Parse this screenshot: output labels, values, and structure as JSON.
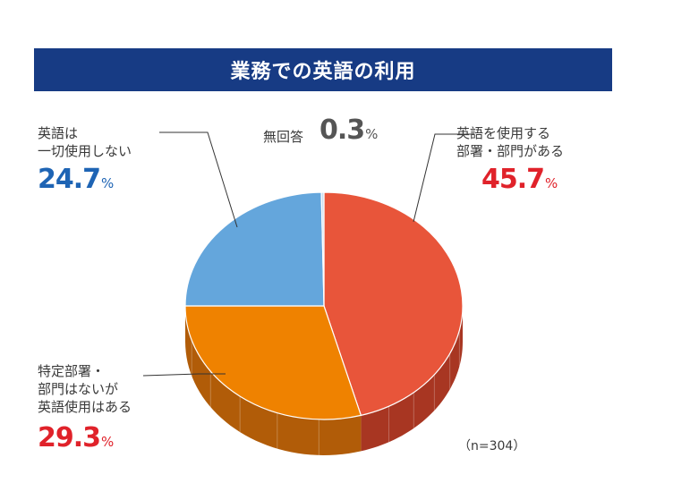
{
  "chart_data": {
    "type": "pie",
    "title": "業務での英語の利用",
    "note": "（n=304）",
    "unit": "%",
    "slices": [
      {
        "label_lines": [
          "英語を使用する",
          "部署・部門がある"
        ],
        "value": 45.7,
        "value_text": "45.7",
        "color": "#e8553a",
        "side_color": "#a83622",
        "value_color": "#e0222a"
      },
      {
        "label_lines": [
          "特定部署・",
          "部門はないが",
          "英語使用はある"
        ],
        "value": 29.3,
        "value_text": "29.3",
        "color": "#ef8200",
        "side_color": "#b15c08",
        "value_color": "#e0222a"
      },
      {
        "label_lines": [
          "英語は",
          "一切使用しない"
        ],
        "value": 24.7,
        "value_text": "24.7",
        "color": "#64a6dc",
        "side_color": "#3f78aa",
        "value_color": "#1e64b4"
      },
      {
        "label_lines": [
          "無回答"
        ],
        "value": 0.3,
        "value_text": "0.3",
        "color": "#c8dcef",
        "side_color": "#8fa9c2",
        "value_color": "#555555"
      }
    ]
  }
}
